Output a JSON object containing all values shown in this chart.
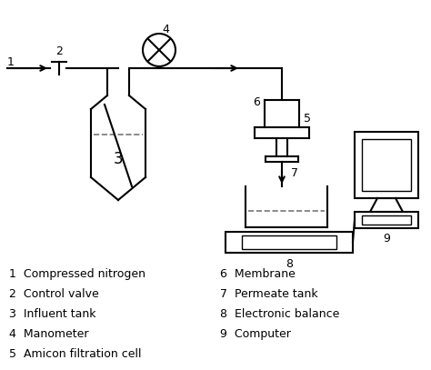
{
  "bg_color": "#ffffff",
  "line_color": "#000000",
  "line_width": 1.5,
  "legend_items_left": [
    "1  Compressed nitrogen",
    "2  Control valve",
    "3  Influent tank",
    "4  Manometer",
    "5  Amicon filtration cell"
  ],
  "legend_items_right": [
    "6  Membrane",
    "7  Permeate tank",
    "8  Electronic balance",
    "9  Computer"
  ]
}
